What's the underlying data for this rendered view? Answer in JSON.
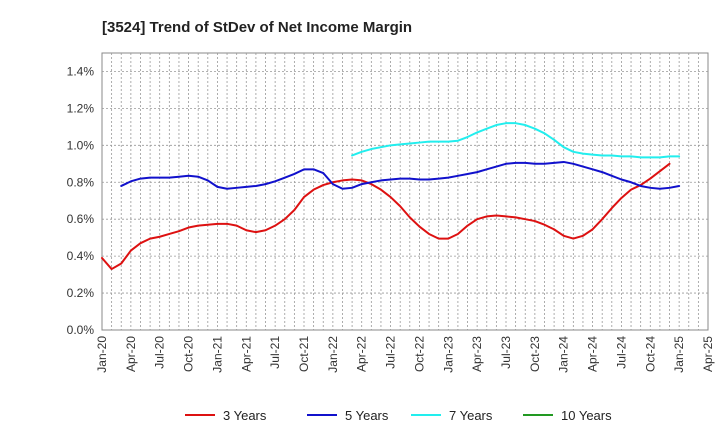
{
  "chart_data": {
    "type": "line",
    "title": "[3524]  Trend of StDev of Net Income Margin",
    "xlabel": "",
    "ylabel": "",
    "ylim": [
      0,
      1.5
    ],
    "y_ticks": [
      "0.0%",
      "0.2%",
      "0.4%",
      "0.6%",
      "0.8%",
      "1.0%",
      "1.2%",
      "1.4%"
    ],
    "y_tick_values": [
      0,
      0.2,
      0.4,
      0.6,
      0.8,
      1.0,
      1.2,
      1.4
    ],
    "x_ticks": [
      "Jan-20",
      "Apr-20",
      "Jul-20",
      "Oct-20",
      "Jan-21",
      "Apr-21",
      "Jul-21",
      "Oct-21",
      "Jan-22",
      "Apr-22",
      "Jul-22",
      "Oct-22",
      "Jan-23",
      "Apr-23",
      "Jul-23",
      "Oct-23",
      "Jan-24",
      "Apr-24",
      "Jul-24",
      "Oct-24",
      "Jan-25",
      "Apr-25"
    ],
    "grid": true,
    "legend_position": "bottom",
    "series": [
      {
        "name": "3 Years",
        "color": "#dd1111",
        "start": "2020-01",
        "values": [
          0.39,
          0.33,
          0.36,
          0.43,
          0.47,
          0.495,
          0.505,
          0.52,
          0.535,
          0.555,
          0.565,
          0.57,
          0.575,
          0.575,
          0.565,
          0.54,
          0.53,
          0.54,
          0.565,
          0.6,
          0.65,
          0.72,
          0.76,
          0.785,
          0.8,
          0.81,
          0.815,
          0.81,
          0.79,
          0.76,
          0.72,
          0.67,
          0.61,
          0.56,
          0.52,
          0.495,
          0.495,
          0.52,
          0.565,
          0.6,
          0.615,
          0.62,
          0.615,
          0.61,
          0.6,
          0.59,
          0.57,
          0.545,
          0.51,
          0.495,
          0.51,
          0.545,
          0.6,
          0.66,
          0.715,
          0.76,
          0.785,
          0.82,
          0.86,
          0.9
        ]
      },
      {
        "name": "5 Years",
        "color": "#1111cc",
        "start": "2020-03",
        "values": [
          0.78,
          0.805,
          0.82,
          0.825,
          0.825,
          0.825,
          0.83,
          0.835,
          0.83,
          0.81,
          0.775,
          0.765,
          0.77,
          0.775,
          0.78,
          0.79,
          0.805,
          0.825,
          0.845,
          0.87,
          0.87,
          0.85,
          0.79,
          0.765,
          0.77,
          0.79,
          0.8,
          0.81,
          0.815,
          0.82,
          0.82,
          0.815,
          0.815,
          0.82,
          0.825,
          0.835,
          0.845,
          0.855,
          0.87,
          0.885,
          0.9,
          0.905,
          0.905,
          0.9,
          0.9,
          0.905,
          0.91,
          0.9,
          0.885,
          0.87,
          0.855,
          0.835,
          0.815,
          0.8,
          0.78,
          0.77,
          0.765,
          0.77,
          0.78
        ]
      },
      {
        "name": "7 Years",
        "color": "#22eeee",
        "start": "2022-03",
        "values": [
          0.945,
          0.965,
          0.98,
          0.99,
          1.0,
          1.005,
          1.01,
          1.015,
          1.02,
          1.02,
          1.02,
          1.025,
          1.045,
          1.07,
          1.09,
          1.11,
          1.12,
          1.12,
          1.11,
          1.09,
          1.065,
          1.03,
          0.99,
          0.965,
          0.955,
          0.95,
          0.945,
          0.945,
          0.94,
          0.94,
          0.935,
          0.935,
          0.935,
          0.94,
          0.94
        ]
      },
      {
        "name": "10 Years",
        "color": "#229922",
        "start": "2025-01",
        "values": []
      }
    ]
  }
}
